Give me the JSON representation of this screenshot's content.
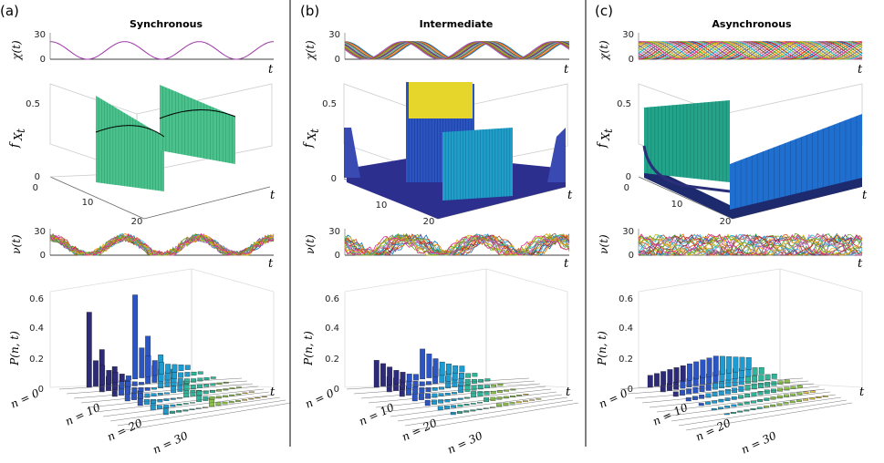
{
  "figure": {
    "panel_letters": [
      "(a)",
      "(b)",
      "(c)"
    ],
    "panel_titles": [
      "Synchronous",
      "Intermediate",
      "Asynchronous"
    ],
    "labels": {
      "chi": "χ(t)",
      "f": "f",
      "f_sub": "X",
      "f_subsub": "t",
      "nu": "ν(t)",
      "P": "P(n, t)",
      "t": "t",
      "n0": "n = 0",
      "n10": "n = 10",
      "n20": "n = 20",
      "n30": "n = 30"
    },
    "ticks": {
      "chi": [
        "0",
        "30"
      ],
      "nu": [
        "0",
        "30"
      ],
      "f_vertical": [
        "0",
        "0.5"
      ],
      "f_depth": [
        "0",
        "10",
        "20"
      ],
      "P_vertical": [
        "0",
        "0.2",
        "0.4",
        "0.6"
      ]
    }
  },
  "chart_data": [
    {
      "type": "line",
      "panel": "a",
      "title": "χ(t) synchronous",
      "ylim": [
        0,
        30
      ],
      "description_values": {
        "n_traces": 1,
        "mean": 10,
        "amplitude": 10,
        "cycles": 3
      }
    },
    {
      "type": "line",
      "panel": "b",
      "title": "χ(t) intermediate",
      "ylim": [
        0,
        30
      ],
      "description_values": {
        "n_traces": 12,
        "mean": 10,
        "amplitude": 10,
        "phase_spread": "partial"
      }
    },
    {
      "type": "line",
      "panel": "c",
      "title": "χ(t) asynchronous",
      "ylim": [
        0,
        30
      ],
      "description_values": {
        "n_traces": 20,
        "mean": 10,
        "amplitude": 10,
        "phase_spread": "uniform"
      }
    },
    {
      "type": "area",
      "panel": "a",
      "title": "f_{X_t} synchronous",
      "zlim": [
        0,
        0.5
      ],
      "depth_range": [
        0,
        20
      ],
      "description_values": {
        "peak_density": 0.5,
        "peaks": 2
      }
    },
    {
      "type": "area",
      "panel": "b",
      "title": "f_{X_t} intermediate",
      "zlim": [
        0,
        0.5
      ],
      "depth_range": [
        0,
        20
      ],
      "description_values": {
        "peak_density": 0.5
      }
    },
    {
      "type": "area",
      "panel": "c",
      "title": "f_{X_t} asynchronous",
      "zlim": [
        0,
        0.5
      ],
      "depth_range": [
        0,
        20
      ],
      "description_values": {
        "plateau_density_left": 0.5,
        "plateau_density_right": 0.4
      }
    },
    {
      "type": "line",
      "panel": "a",
      "title": "ν(t) synchronous",
      "ylim": [
        0,
        30
      ],
      "description_values": {
        "n_traces": 20,
        "mean": 10,
        "amplitude": 10
      }
    },
    {
      "type": "line",
      "panel": "b",
      "title": "ν(t) intermediate",
      "ylim": [
        0,
        30
      ],
      "description_values": {
        "n_traces": 20,
        "mean": 10,
        "amplitude": 10
      }
    },
    {
      "type": "line",
      "panel": "c",
      "title": "ν(t) asynchronous",
      "ylim": [
        0,
        30
      ],
      "description_values": {
        "n_traces": 20,
        "mean": 10,
        "amplitude": 10
      }
    },
    {
      "type": "bar",
      "panel": "a",
      "title": "P(n,t) synchronous",
      "zlim": [
        0,
        0.6
      ],
      "n_range": [
        0,
        30
      ],
      "front_row_values": [
        0.5,
        0.17,
        0.13,
        0.09,
        0.07,
        0.05,
        0.03,
        0.56,
        0.2,
        0.14,
        0.1,
        0.08,
        0.06,
        0.05,
        0.04,
        0.03
      ]
    },
    {
      "type": "bar",
      "panel": "b",
      "title": "P(n,t) intermediate",
      "zlim": [
        0,
        0.6
      ],
      "n_range": [
        0,
        30
      ],
      "front_row_values": [
        0.18,
        0.15,
        0.12,
        0.09,
        0.07,
        0.05,
        0.04,
        0.2,
        0.16,
        0.12,
        0.09,
        0.07,
        0.05,
        0.04
      ]
    },
    {
      "type": "bar",
      "panel": "c",
      "title": "P(n,t) asynchronous",
      "zlim": [
        0,
        0.6
      ],
      "n_range": [
        0,
        30
      ],
      "front_row_values": [
        0.08,
        0.085,
        0.09,
        0.095,
        0.1,
        0.105,
        0.11,
        0.115,
        0.12,
        0.125,
        0.13,
        0.12,
        0.11,
        0.1,
        0.09,
        0.08
      ]
    }
  ]
}
